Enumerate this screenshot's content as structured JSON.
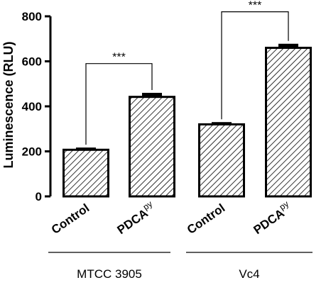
{
  "chart_data": {
    "type": "bar",
    "title": "",
    "xlabel": "",
    "ylabel": "Luminescence (RLU)",
    "ylim": [
      0,
      800
    ],
    "yticks": [
      0,
      200,
      400,
      600,
      800
    ],
    "grid": false,
    "pattern": "diagonal-hatch",
    "bar_color": "#000000",
    "bars": [
      {
        "group": "MTCC 3905",
        "label": "Control",
        "label_sup": "",
        "value": 207,
        "error": 10
      },
      {
        "group": "MTCC 3905",
        "label": "PDCA",
        "label_sup": "py",
        "value": 442,
        "error": 18
      },
      {
        "group": "Vc4",
        "label": "Control",
        "label_sup": "",
        "value": 320,
        "error": 10
      },
      {
        "group": "Vc4",
        "label": "PDCA",
        "label_sup": "py",
        "value": 660,
        "error": 18
      }
    ],
    "groups": [
      "MTCC 3905",
      "Vc4"
    ],
    "significance": [
      {
        "from": 0,
        "to": 1,
        "label": "***",
        "y": 590
      },
      {
        "from": 2,
        "to": 3,
        "label": "***",
        "y": 820
      }
    ]
  }
}
